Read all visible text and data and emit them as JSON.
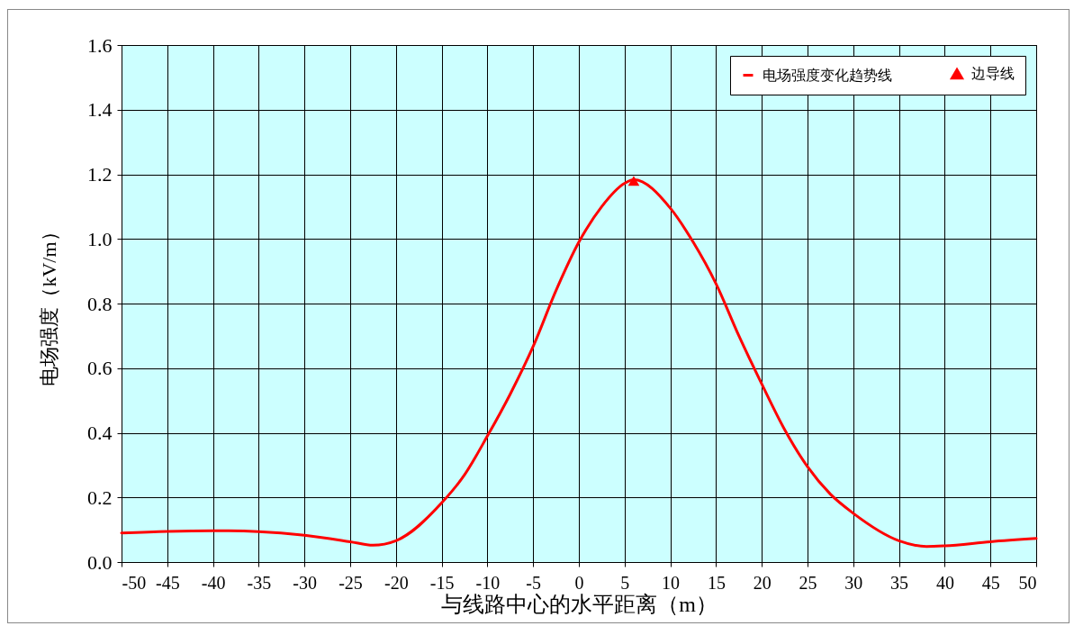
{
  "chart_data": {
    "type": "line",
    "xlabel": "与线路中心的水平距离（m）",
    "ylabel": "电场强度（kV/m）",
    "xlim": [
      -50,
      50
    ],
    "xticks": [
      -50,
      -45,
      -40,
      -35,
      -30,
      -25,
      -20,
      -15,
      -10,
      -5,
      0,
      5,
      10,
      15,
      20,
      25,
      30,
      35,
      40,
      45,
      50
    ],
    "ylim": [
      0,
      1.6
    ],
    "yticks": [
      {
        "value": 0,
        "label": "0.0"
      },
      0.2,
      0.4,
      0.6,
      0.8,
      {
        "value": 1,
        "label": "1.0"
      },
      1.2,
      1.4,
      1.6
    ],
    "grid": true,
    "legend": "top right",
    "line_style": "solid",
    "series": [
      {
        "name": "电场强度变化趋势线",
        "color": "#ff0000",
        "marker": "none",
        "x": [
          -50,
          -45,
          -40,
          -35,
          -30,
          -25,
          -22.5,
          -20,
          -15,
          -12.5,
          -10,
          -7.5,
          -5,
          -2.5,
          0,
          2.5,
          5,
          6,
          10,
          12.5,
          15,
          17.5,
          20,
          22.5,
          25,
          27.5,
          30,
          35,
          38,
          40,
          45,
          50
        ],
        "values": [
          0.09,
          0.095,
          0.097,
          0.094,
          0.083,
          0.063,
          0.052,
          0.066,
          0.183,
          0.27,
          0.39,
          0.52,
          0.667,
          0.84,
          0.99,
          1.1,
          1.172,
          1.183,
          1.095,
          0.99,
          0.861,
          0.7,
          0.551,
          0.41,
          0.295,
          0.21,
          0.151,
          0.066,
          0.048,
          0.05,
          0.063,
          0.073
        ]
      },
      {
        "name": "边导线",
        "type": "scatter",
        "color": "#ff0000",
        "marker": "triangle",
        "x": [
          6
        ],
        "values": [
          1.18
        ]
      }
    ]
  }
}
